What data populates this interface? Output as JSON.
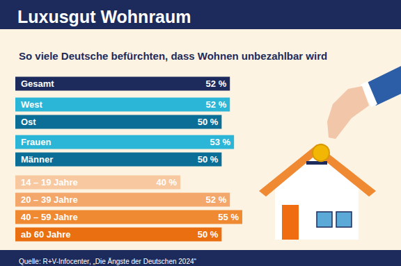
{
  "chart_data": {
    "type": "bar",
    "title": "Luxusgut Wohnraum",
    "subtitle": "So viele Deutsche befürchten, dass Wohnen unbezahlbar wird",
    "source": "Quelle: R+V-Infocenter, „Die Ängste der Deutschen 2024“",
    "categories": [
      "Gesamt",
      "West",
      "Ost",
      "Frauen",
      "Männer",
      "14 – 19 Jahre",
      "20 – 39 Jahre",
      "40 – 59 Jahre",
      "ab 60 Jahre"
    ],
    "values": [
      52,
      52,
      50,
      53,
      50,
      40,
      52,
      55,
      50
    ],
    "value_labels": [
      "52 %",
      "52 %",
      "50 %",
      "53 %",
      "50 %",
      "40 %",
      "52 %",
      "55 %",
      "50 %"
    ],
    "colors": [
      "#1d2b5c",
      "#2bb5d6",
      "#0b6e97",
      "#2bb5d6",
      "#0b6e97",
      "#f8c9a0",
      "#f3a76a",
      "#ef8a33",
      "#e96f10"
    ],
    "xlim": [
      0,
      55
    ],
    "orientation": "horizontal",
    "data_labels": true,
    "tick_labels": "y",
    "grid": false
  }
}
